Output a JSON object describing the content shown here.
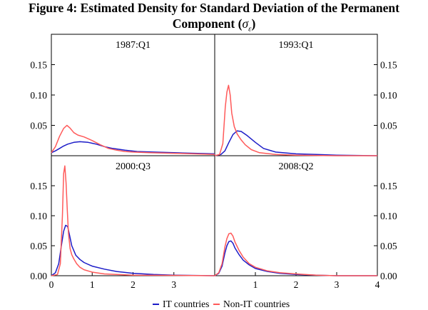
{
  "title": {
    "line1": "Figure 4: Estimated Density for Standard Deviation of the Permanent",
    "line2_prefix": "Component (",
    "line2_symbol": "σ",
    "line2_subscript": "ε",
    "line2_suffix": ")"
  },
  "colors": {
    "it": "#1c1cc8",
    "nonit": "#ff5a5a",
    "axis": "#000000"
  },
  "chart_data": {
    "type": "line",
    "xlim": [
      0,
      4
    ],
    "ylim": [
      0,
      0.2
    ],
    "x_ticks": [
      0,
      1,
      2,
      3,
      4
    ],
    "y_ticks": [
      0.0,
      0.05,
      0.1,
      0.15
    ],
    "y_tick_labels": [
      "0.00",
      "0.05",
      "0.10",
      "0.15"
    ],
    "legend": [
      {
        "key": "it",
        "label": "IT countries"
      },
      {
        "key": "nonit",
        "label": "Non-IT countries"
      }
    ],
    "panels": [
      {
        "title": "1987:Q1",
        "series": {
          "it": {
            "x": [
              0,
              0.1,
              0.2,
              0.3,
              0.4,
              0.55,
              0.7,
              0.9,
              1.1,
              1.3,
              1.5,
              1.8,
              2.1,
              2.5,
              3.0,
              3.5,
              4.0
            ],
            "y": [
              0.005,
              0.008,
              0.012,
              0.016,
              0.019,
              0.022,
              0.023,
              0.022,
              0.019,
              0.015,
              0.012,
              0.009,
              0.007,
              0.006,
              0.005,
              0.004,
              0.003
            ]
          },
          "nonit": {
            "x": [
              0,
              0.1,
              0.2,
              0.3,
              0.38,
              0.45,
              0.55,
              0.65,
              0.8,
              1.0,
              1.2,
              1.4,
              1.6,
              1.8,
              2.0,
              2.4,
              3.0,
              3.5,
              4.0
            ],
            "y": [
              0.005,
              0.015,
              0.032,
              0.045,
              0.05,
              0.046,
              0.038,
              0.034,
              0.031,
              0.025,
              0.018,
              0.012,
              0.009,
              0.007,
              0.006,
              0.005,
              0.004,
              0.003,
              0.002
            ]
          }
        }
      },
      {
        "title": "1993:Q1",
        "series": {
          "it": {
            "x": [
              0,
              0.15,
              0.25,
              0.35,
              0.45,
              0.55,
              0.65,
              0.8,
              1.0,
              1.2,
              1.5,
              2.0,
              2.5,
              3.0,
              4.0
            ],
            "y": [
              0,
              0.002,
              0.008,
              0.022,
              0.035,
              0.041,
              0.04,
              0.033,
              0.022,
              0.012,
              0.006,
              0.003,
              0.002,
              0.001,
              0
            ]
          },
          "nonit": {
            "x": [
              0,
              0.12,
              0.2,
              0.26,
              0.3,
              0.34,
              0.38,
              0.42,
              0.48,
              0.55,
              0.65,
              0.75,
              0.9,
              1.1,
              1.5,
              2.0,
              3.0,
              4.0
            ],
            "y": [
              0,
              0.002,
              0.02,
              0.08,
              0.105,
              0.116,
              0.1,
              0.07,
              0.048,
              0.036,
              0.026,
              0.018,
              0.01,
              0.005,
              0.002,
              0.001,
              0,
              0
            ]
          }
        }
      },
      {
        "title": "2000:Q3",
        "series": {
          "it": {
            "x": [
              0,
              0.1,
              0.18,
              0.25,
              0.3,
              0.35,
              0.4,
              0.45,
              0.5,
              0.6,
              0.7,
              0.8,
              1.0,
              1.3,
              1.6,
              2.0,
              2.5,
              3.0,
              4.0
            ],
            "y": [
              0,
              0.005,
              0.02,
              0.052,
              0.074,
              0.084,
              0.082,
              0.066,
              0.05,
              0.034,
              0.027,
              0.022,
              0.016,
              0.011,
              0.007,
              0.004,
              0.002,
              0.001,
              0
            ]
          },
          "nonit": {
            "x": [
              0,
              0.15,
              0.22,
              0.27,
              0.3,
              0.33,
              0.36,
              0.39,
              0.42,
              0.46,
              0.5,
              0.55,
              0.62,
              0.7,
              0.8,
              1.0,
              1.3,
              2.0,
              4.0
            ],
            "y": [
              0,
              0.002,
              0.02,
              0.1,
              0.17,
              0.183,
              0.155,
              0.11,
              0.07,
              0.045,
              0.035,
              0.028,
              0.02,
              0.014,
              0.01,
              0.006,
              0.003,
              0.001,
              0
            ]
          }
        }
      },
      {
        "title": "2008:Q2",
        "series": {
          "it": {
            "x": [
              0,
              0.1,
              0.18,
              0.25,
              0.3,
              0.35,
              0.4,
              0.45,
              0.5,
              0.6,
              0.7,
              0.85,
              1.0,
              1.3,
              1.6,
              2.0,
              2.5,
              3.0,
              4.0
            ],
            "y": [
              0,
              0.004,
              0.016,
              0.038,
              0.05,
              0.057,
              0.058,
              0.054,
              0.046,
              0.035,
              0.026,
              0.018,
              0.012,
              0.007,
              0.004,
              0.002,
              0.001,
              0,
              0
            ]
          },
          "nonit": {
            "x": [
              0,
              0.1,
              0.18,
              0.25,
              0.3,
              0.35,
              0.4,
              0.45,
              0.5,
              0.6,
              0.7,
              0.85,
              1.0,
              1.3,
              1.6,
              2.0,
              2.5,
              3.0,
              4.0
            ],
            "y": [
              0,
              0.005,
              0.02,
              0.048,
              0.062,
              0.07,
              0.071,
              0.066,
              0.056,
              0.042,
              0.031,
              0.02,
              0.014,
              0.008,
              0.005,
              0.003,
              0.001,
              0,
              0
            ]
          }
        }
      }
    ]
  }
}
